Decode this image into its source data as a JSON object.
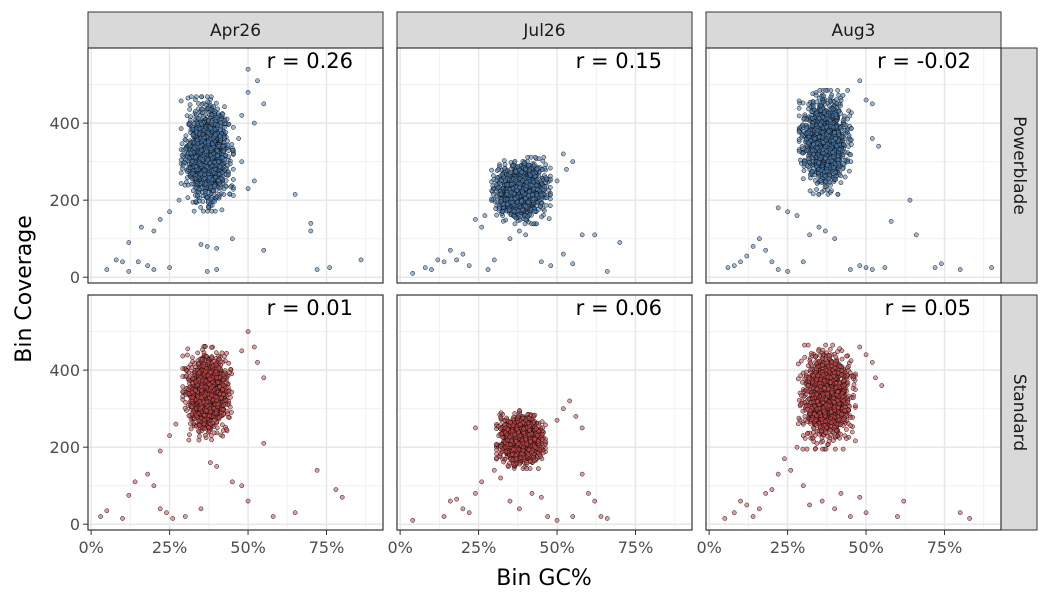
{
  "chart_data": {
    "type": "scatter",
    "layout": "facet-grid",
    "xlabel": "Bin GC%",
    "ylabel": "Bin Coverage",
    "x_ticks": [
      "0%",
      "25%",
      "50%",
      "75%"
    ],
    "x_tick_values": [
      0,
      0.25,
      0.5,
      0.75
    ],
    "y_ticks": [
      "0",
      "200",
      "400"
    ],
    "y_tick_values": [
      0,
      200,
      400
    ],
    "xlim": [
      -0.01,
      0.93
    ],
    "ylim": [
      -15,
      595
    ],
    "grid": true,
    "columns": [
      "Apr26",
      "Jul26",
      "Aug3"
    ],
    "rows": [
      "Powerblade",
      "Standard"
    ],
    "row_colors": {
      "Powerblade": "#4a81b8",
      "Standard": "#d6494a"
    },
    "panels": [
      {
        "row": "Powerblade",
        "col": "Apr26",
        "r_label": "r = 0.26",
        "r": 0.26,
        "cluster": {
          "gc_mean": 0.37,
          "gc_sd": 0.032,
          "cov_mean": 320,
          "cov_sd": 55,
          "n": 1500
        },
        "outliers": [
          [
            0.12,
            90
          ],
          [
            0.08,
            45
          ],
          [
            0.1,
            40
          ],
          [
            0.15,
            40
          ],
          [
            0.18,
            30
          ],
          [
            0.05,
            20
          ],
          [
            0.12,
            15
          ],
          [
            0.2,
            20
          ],
          [
            0.25,
            25
          ],
          [
            0.35,
            85
          ],
          [
            0.37,
            80
          ],
          [
            0.4,
            75
          ],
          [
            0.45,
            100
          ],
          [
            0.37,
            15
          ],
          [
            0.4,
            20
          ],
          [
            0.55,
            70
          ],
          [
            0.65,
            215
          ],
          [
            0.7,
            140
          ],
          [
            0.7,
            120
          ],
          [
            0.72,
            20
          ],
          [
            0.76,
            25
          ],
          [
            0.86,
            45
          ],
          [
            0.5,
            230
          ],
          [
            0.48,
            420
          ],
          [
            0.5,
            480
          ],
          [
            0.5,
            540
          ],
          [
            0.53,
            510
          ],
          [
            0.55,
            450
          ],
          [
            0.52,
            400
          ],
          [
            0.48,
            300
          ],
          [
            0.52,
            250
          ],
          [
            0.16,
            130
          ],
          [
            0.2,
            120
          ],
          [
            0.22,
            150
          ],
          [
            0.25,
            170
          ],
          [
            0.28,
            200
          ],
          [
            0.45,
            330
          ],
          [
            0.47,
            360
          ]
        ]
      },
      {
        "row": "Powerblade",
        "col": "Jul26",
        "r_label": "r = 0.15",
        "r": 0.15,
        "cluster": {
          "gc_mean": 0.385,
          "gc_sd": 0.036,
          "cov_mean": 225,
          "cov_sd": 32,
          "n": 1500
        },
        "outliers": [
          [
            0.04,
            10
          ],
          [
            0.08,
            25
          ],
          [
            0.1,
            20
          ],
          [
            0.12,
            45
          ],
          [
            0.14,
            40
          ],
          [
            0.16,
            70
          ],
          [
            0.2,
            60
          ],
          [
            0.18,
            45
          ],
          [
            0.22,
            30
          ],
          [
            0.28,
            20
          ],
          [
            0.3,
            45
          ],
          [
            0.24,
            150
          ],
          [
            0.26,
            130
          ],
          [
            0.27,
            160
          ],
          [
            0.35,
            100
          ],
          [
            0.38,
            120
          ],
          [
            0.4,
            110
          ],
          [
            0.45,
            40
          ],
          [
            0.48,
            30
          ],
          [
            0.52,
            60
          ],
          [
            0.55,
            35
          ],
          [
            0.58,
            110
          ],
          [
            0.62,
            110
          ],
          [
            0.66,
            15
          ],
          [
            0.7,
            90
          ],
          [
            0.55,
            300
          ],
          [
            0.53,
            280
          ],
          [
            0.52,
            320
          ],
          [
            0.5,
            250
          ]
        ]
      },
      {
        "row": "Powerblade",
        "col": "Aug3",
        "r_label": "r = -0.02",
        "r": -0.02,
        "cluster": {
          "gc_mean": 0.37,
          "gc_sd": 0.032,
          "cov_mean": 350,
          "cov_sd": 50,
          "n": 1500
        },
        "outliers": [
          [
            0.06,
            25
          ],
          [
            0.08,
            30
          ],
          [
            0.1,
            40
          ],
          [
            0.12,
            55
          ],
          [
            0.14,
            80
          ],
          [
            0.16,
            100
          ],
          [
            0.18,
            70
          ],
          [
            0.2,
            40
          ],
          [
            0.22,
            20
          ],
          [
            0.25,
            15
          ],
          [
            0.3,
            40
          ],
          [
            0.32,
            110
          ],
          [
            0.35,
            130
          ],
          [
            0.37,
            120
          ],
          [
            0.4,
            100
          ],
          [
            0.45,
            20
          ],
          [
            0.48,
            30
          ],
          [
            0.5,
            25
          ],
          [
            0.52,
            20
          ],
          [
            0.56,
            25
          ],
          [
            0.58,
            145
          ],
          [
            0.64,
            200
          ],
          [
            0.66,
            110
          ],
          [
            0.72,
            25
          ],
          [
            0.74,
            35
          ],
          [
            0.8,
            20
          ],
          [
            0.9,
            25
          ],
          [
            0.22,
            180
          ],
          [
            0.25,
            170
          ],
          [
            0.28,
            160
          ],
          [
            0.5,
            460
          ],
          [
            0.52,
            450
          ],
          [
            0.48,
            510
          ],
          [
            0.52,
            360
          ],
          [
            0.54,
            340
          ]
        ]
      },
      {
        "row": "Standard",
        "col": "Apr26",
        "r_label": "r = 0.01",
        "r": 0.01,
        "cluster": {
          "gc_mean": 0.37,
          "gc_sd": 0.03,
          "cov_mean": 340,
          "cov_sd": 45,
          "n": 1500
        },
        "outliers": [
          [
            0.03,
            20
          ],
          [
            0.05,
            35
          ],
          [
            0.1,
            15
          ],
          [
            0.12,
            75
          ],
          [
            0.14,
            110
          ],
          [
            0.18,
            130
          ],
          [
            0.2,
            100
          ],
          [
            0.22,
            40
          ],
          [
            0.24,
            30
          ],
          [
            0.26,
            15
          ],
          [
            0.3,
            20
          ],
          [
            0.35,
            40
          ],
          [
            0.38,
            160
          ],
          [
            0.4,
            150
          ],
          [
            0.45,
            110
          ],
          [
            0.48,
            100
          ],
          [
            0.5,
            60
          ],
          [
            0.55,
            210
          ],
          [
            0.58,
            20
          ],
          [
            0.65,
            30
          ],
          [
            0.72,
            140
          ],
          [
            0.78,
            90
          ],
          [
            0.8,
            70
          ],
          [
            0.5,
            500
          ],
          [
            0.52,
            460
          ],
          [
            0.53,
            420
          ],
          [
            0.55,
            380
          ],
          [
            0.48,
            450
          ],
          [
            0.22,
            190
          ],
          [
            0.25,
            230
          ],
          [
            0.27,
            260
          ]
        ]
      },
      {
        "row": "Standard",
        "col": "Jul26",
        "r_label": "r = 0.06",
        "r": 0.06,
        "cluster": {
          "gc_mean": 0.385,
          "gc_sd": 0.03,
          "cov_mean": 220,
          "cov_sd": 28,
          "n": 1500
        },
        "outliers": [
          [
            0.04,
            10
          ],
          [
            0.14,
            20
          ],
          [
            0.16,
            60
          ],
          [
            0.18,
            65
          ],
          [
            0.2,
            40
          ],
          [
            0.22,
            30
          ],
          [
            0.24,
            80
          ],
          [
            0.26,
            110
          ],
          [
            0.3,
            140
          ],
          [
            0.32,
            120
          ],
          [
            0.35,
            60
          ],
          [
            0.38,
            40
          ],
          [
            0.42,
            80
          ],
          [
            0.45,
            70
          ],
          [
            0.47,
            20
          ],
          [
            0.5,
            10
          ],
          [
            0.55,
            20
          ],
          [
            0.58,
            130
          ],
          [
            0.6,
            80
          ],
          [
            0.62,
            60
          ],
          [
            0.64,
            20
          ],
          [
            0.66,
            15
          ],
          [
            0.52,
            300
          ],
          [
            0.54,
            320
          ],
          [
            0.56,
            280
          ],
          [
            0.58,
            250
          ],
          [
            0.5,
            270
          ],
          [
            0.24,
            250
          ]
        ]
      },
      {
        "row": "Standard",
        "col": "Aug3",
        "r_label": "r = 0.05",
        "r": 0.05,
        "cluster": {
          "gc_mean": 0.375,
          "gc_sd": 0.035,
          "cov_mean": 330,
          "cov_sd": 50,
          "n": 1500
        },
        "outliers": [
          [
            0.05,
            15
          ],
          [
            0.08,
            30
          ],
          [
            0.1,
            60
          ],
          [
            0.12,
            50
          ],
          [
            0.14,
            20
          ],
          [
            0.16,
            40
          ],
          [
            0.18,
            80
          ],
          [
            0.2,
            90
          ],
          [
            0.22,
            130
          ],
          [
            0.24,
            170
          ],
          [
            0.26,
            140
          ],
          [
            0.3,
            100
          ],
          [
            0.32,
            50
          ],
          [
            0.36,
            60
          ],
          [
            0.4,
            40
          ],
          [
            0.42,
            80
          ],
          [
            0.45,
            20
          ],
          [
            0.48,
            70
          ],
          [
            0.5,
            30
          ],
          [
            0.6,
            20
          ],
          [
            0.62,
            60
          ],
          [
            0.8,
            30
          ],
          [
            0.83,
            15
          ],
          [
            0.5,
            440
          ],
          [
            0.52,
            420
          ],
          [
            0.53,
            380
          ],
          [
            0.55,
            360
          ],
          [
            0.48,
            460
          ],
          [
            0.28,
            200
          ],
          [
            0.3,
            230
          ]
        ]
      }
    ]
  }
}
